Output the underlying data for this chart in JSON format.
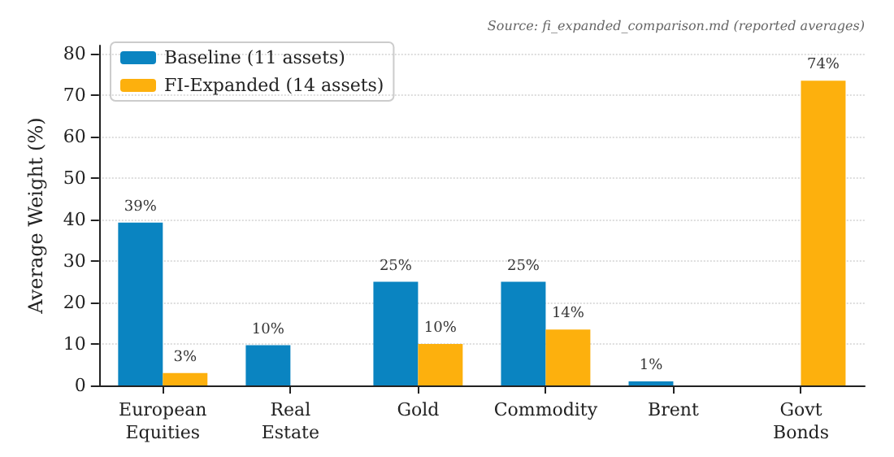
{
  "chart_data": {
    "type": "bar",
    "ylabel": "Average Weight (%)",
    "annotations": [
      "Source: fi_expanded_comparison.md (reported averages)"
    ],
    "categories": [
      "European\nEquities",
      "Real\nEstate",
      "Gold",
      "Commodity",
      "Brent",
      "Govt\nBonds"
    ],
    "series": [
      {
        "name": "Baseline (11 assets)",
        "color": "#0a84c1",
        "values": [
          39.3,
          9.7,
          25,
          25,
          1,
          null
        ],
        "value_labels": [
          "39%",
          "10%",
          "25%",
          "25%",
          "1%",
          null
        ]
      },
      {
        "name": "FI-Expanded (14 assets)",
        "color": "#fdb00d",
        "values": [
          3,
          null,
          10,
          13.5,
          null,
          73.5
        ],
        "value_labels": [
          "3%",
          null,
          "10%",
          "14%",
          null,
          "74%"
        ]
      }
    ],
    "ylim": [
      0,
      82
    ],
    "yticks": [
      0,
      10,
      20,
      30,
      40,
      50,
      60,
      70,
      80
    ],
    "grid": "y",
    "legend": "top left"
  }
}
